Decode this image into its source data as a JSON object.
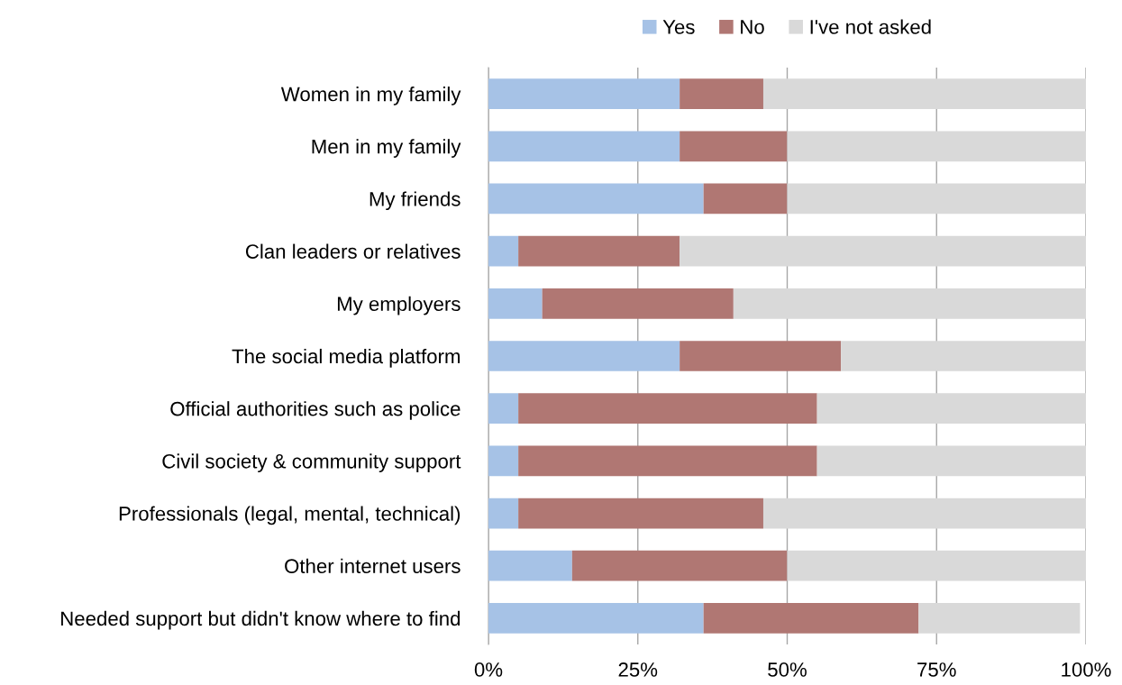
{
  "chart_data": {
    "type": "bar",
    "orientation": "horizontal",
    "stacked": true,
    "categories": [
      "Women in my family",
      "Men in my family",
      "My friends",
      "Clan leaders or relatives",
      "My employers",
      "The social media platform",
      "Official authorities such as police",
      "Civil society & community support",
      "Professionals (legal, mental, technical)",
      "Other internet users",
      "Needed support but didn't know where to find"
    ],
    "series": [
      {
        "name": "Yes",
        "color": "#a6c2e6",
        "values": [
          32,
          32,
          36,
          5,
          9,
          32,
          5,
          5,
          5,
          14,
          36
        ]
      },
      {
        "name": "No",
        "color": "#b07773",
        "values": [
          14,
          18,
          14,
          27,
          32,
          27,
          50,
          50,
          41,
          36,
          36
        ]
      },
      {
        "name": "I've not asked",
        "color": "#d9d9d9",
        "values": [
          54,
          50,
          50,
          68,
          59,
          41,
          45,
          45,
          54,
          50,
          27
        ]
      }
    ],
    "xlim": [
      0,
      100
    ],
    "xticks": [
      {
        "value": 0,
        "label": "0%"
      },
      {
        "value": 25,
        "label": "25%"
      },
      {
        "value": 50,
        "label": "50%"
      },
      {
        "value": 75,
        "label": "75%"
      },
      {
        "value": 100,
        "label": "100%"
      }
    ],
    "grid": "x",
    "legend": "top"
  }
}
